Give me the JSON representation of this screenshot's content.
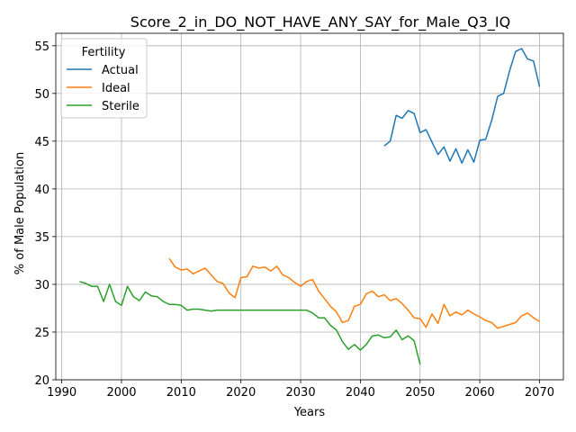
{
  "chart_data": {
    "type": "line",
    "title": "Score_2_in_DO_NOT_HAVE_ANY_SAY_for_Male_Q3_IQ",
    "xlabel": "Years",
    "ylabel": "% of Male Population",
    "xlim": [
      1989,
      2074
    ],
    "ylim": [
      20,
      56.3
    ],
    "xticks": [
      1990,
      2000,
      2010,
      2020,
      2030,
      2040,
      2050,
      2060,
      2070
    ],
    "yticks": [
      20,
      25,
      30,
      35,
      40,
      45,
      50,
      55
    ],
    "grid": true,
    "legend": {
      "title": "Fertility",
      "position": "top-left"
    },
    "series": [
      {
        "name": "Actual",
        "color": "#1f77b4",
        "x": [
          2044,
          2045,
          2046,
          2047,
          2048,
          2049,
          2050,
          2051,
          2052,
          2053,
          2054,
          2055,
          2056,
          2057,
          2058,
          2059,
          2060,
          2061,
          2062,
          2063,
          2064,
          2065,
          2066,
          2067,
          2068,
          2069,
          2070
        ],
        "y": [
          44.5,
          45.0,
          47.7,
          47.4,
          48.2,
          47.9,
          45.9,
          46.2,
          44.9,
          43.6,
          44.4,
          42.9,
          44.2,
          42.7,
          44.1,
          42.8,
          45.1,
          45.2,
          47.2,
          49.7,
          50.0,
          52.4,
          54.4,
          54.7,
          53.6,
          53.4,
          50.7
        ]
      },
      {
        "name": "Ideal",
        "color": "#ff7f0e",
        "x": [
          2008,
          2009,
          2010,
          2011,
          2012,
          2013,
          2014,
          2015,
          2016,
          2017,
          2018,
          2019,
          2020,
          2021,
          2022,
          2023,
          2024,
          2025,
          2026,
          2027,
          2028,
          2029,
          2030,
          2031,
          2032,
          2033,
          2034,
          2035,
          2036,
          2037,
          2038,
          2039,
          2040,
          2041,
          2042,
          2043,
          2044,
          2045,
          2046,
          2047,
          2048,
          2049,
          2050,
          2051,
          2052,
          2053,
          2054,
          2055,
          2056,
          2057,
          2058,
          2059,
          2060,
          2061,
          2062,
          2063,
          2064,
          2065,
          2066,
          2067,
          2068,
          2069,
          2070
        ],
        "y": [
          32.7,
          31.8,
          31.5,
          31.6,
          31.1,
          31.4,
          31.7,
          31.0,
          30.3,
          30.1,
          29.1,
          28.6,
          30.7,
          30.8,
          31.9,
          31.7,
          31.8,
          31.4,
          31.9,
          31.0,
          30.7,
          30.2,
          29.8,
          30.3,
          30.5,
          29.3,
          28.5,
          27.7,
          27.1,
          26.0,
          26.2,
          27.7,
          27.9,
          29.0,
          29.3,
          28.7,
          28.9,
          28.3,
          28.5,
          28.0,
          27.3,
          26.5,
          26.4,
          25.5,
          26.9,
          25.9,
          27.9,
          26.7,
          27.1,
          26.8,
          27.3,
          26.9,
          26.6,
          26.2,
          26.0,
          25.4,
          25.6,
          25.8,
          26.0,
          26.7,
          27.0,
          26.5,
          26.1
        ]
      },
      {
        "name": "Sterile",
        "color": "#2ca02c",
        "x": [
          1993,
          1994,
          1995,
          1996,
          1997,
          1998,
          1999,
          2000,
          2001,
          2002,
          2003,
          2004,
          2005,
          2006,
          2007,
          2008,
          2009,
          2010,
          2011,
          2012,
          2013,
          2014,
          2015,
          2016,
          2017,
          2018,
          2019,
          2020,
          2021,
          2022,
          2023,
          2024,
          2025,
          2026,
          2027,
          2028,
          2029,
          2030,
          2031,
          2032,
          2033,
          2034,
          2035,
          2036,
          2037,
          2038,
          2039,
          2040,
          2041,
          2042,
          2043,
          2044,
          2045,
          2046,
          2047,
          2048,
          2049,
          2050
        ],
        "y": [
          30.3,
          30.1,
          29.8,
          29.8,
          28.2,
          30.0,
          28.2,
          27.8,
          29.8,
          28.7,
          28.3,
          29.2,
          28.8,
          28.7,
          28.2,
          27.9,
          27.9,
          27.8,
          27.3,
          27.4,
          27.4,
          27.3,
          27.2,
          27.3,
          27.3,
          27.3,
          27.3,
          27.3,
          27.3,
          27.3,
          27.3,
          27.3,
          27.3,
          27.3,
          27.3,
          27.3,
          27.3,
          27.3,
          27.3,
          27.0,
          26.5,
          26.5,
          25.7,
          25.2,
          24.0,
          23.2,
          23.7,
          23.1,
          23.7,
          24.6,
          24.7,
          24.4,
          24.5,
          25.2,
          24.2,
          24.6,
          24.1,
          21.6
        ]
      }
    ]
  }
}
